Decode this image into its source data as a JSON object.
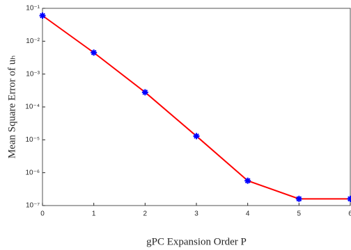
{
  "chart_data": {
    "type": "line",
    "xlabel": "gPC Expansion Order P",
    "ylabel": "Mean Square Error of uₕ",
    "x": [
      0,
      1,
      2,
      3,
      4,
      5,
      6
    ],
    "series": [
      {
        "color": "#ff0000",
        "marker_color": "#0000ff",
        "values": [
          0.06,
          0.0045,
          0.00028,
          1.3e-05,
          5.7e-07,
          1.6e-07,
          1.6e-07
        ]
      }
    ],
    "xlim": [
      0,
      6
    ],
    "xticks": [
      0,
      1,
      2,
      3,
      4,
      5,
      6
    ],
    "ylim": [
      1e-07,
      0.1
    ],
    "log_y": true,
    "yticks": [
      {
        "value": 1e-07,
        "label": "10⁻⁷"
      },
      {
        "value": 1e-06,
        "label": "10⁻⁶"
      },
      {
        "value": 1e-05,
        "label": "10⁻⁵"
      },
      {
        "value": 0.0001,
        "label": "10⁻⁴"
      },
      {
        "value": 0.001,
        "label": "10⁻³"
      },
      {
        "value": 0.01,
        "label": "10⁻²"
      },
      {
        "value": 0.1,
        "label": "10⁻¹"
      }
    ]
  }
}
